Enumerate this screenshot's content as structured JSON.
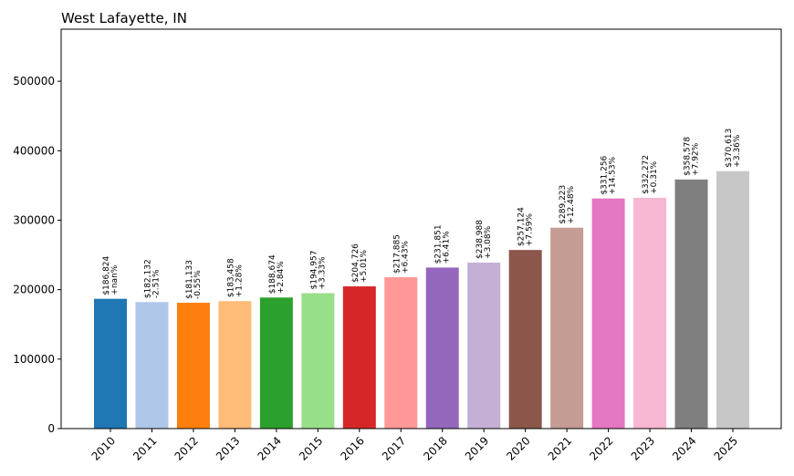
{
  "chart_data": {
    "type": "bar",
    "title": "West Lafayette, IN",
    "xlabel": "",
    "ylabel": "",
    "ylim": [
      0,
      575000
    ],
    "yticks": [
      0,
      100000,
      200000,
      300000,
      400000,
      500000
    ],
    "categories": [
      "2010",
      "2011",
      "2012",
      "2013",
      "2014",
      "2015",
      "2016",
      "2017",
      "2018",
      "2019",
      "2020",
      "2021",
      "2022",
      "2023",
      "2024",
      "2025"
    ],
    "values": [
      186824,
      182132,
      181133,
      183458,
      188674,
      194957,
      204726,
      217885,
      231851,
      238988,
      257124,
      289223,
      331256,
      332272,
      358578,
      370613
    ],
    "price_labels": [
      "$186,824",
      "$182,132",
      "$181,133",
      "$183,458",
      "$188,674",
      "$194,957",
      "$204,726",
      "$217,885",
      "$231,851",
      "$238,988",
      "$257,124",
      "$289,223",
      "$331,256",
      "$332,272",
      "$358,578",
      "$370,613"
    ],
    "change_labels": [
      "+nan%",
      "-2.51%",
      "-0.55%",
      "+1.28%",
      "+2.84%",
      "+3.33%",
      "+5.01%",
      "+6.43%",
      "+6.41%",
      "+3.08%",
      "+7.59%",
      "+12.48%",
      "+14.53%",
      "+0.31%",
      "+7.92%",
      "+3.36%"
    ],
    "colors": [
      "#1f77b4",
      "#aec7e8",
      "#ff7f0e",
      "#ffbb78",
      "#2ca02c",
      "#98df8a",
      "#d62728",
      "#ff9896",
      "#9467bd",
      "#c5b0d5",
      "#8c564b",
      "#c49c94",
      "#e377c2",
      "#f7b6d2",
      "#7f7f7f",
      "#c7c7c7"
    ],
    "grid": false,
    "legend": "none"
  }
}
